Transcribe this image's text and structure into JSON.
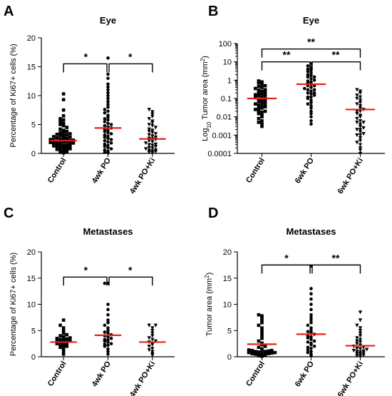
{
  "chart_data": [
    {
      "panel": "A",
      "type": "scatter",
      "title": "Eye",
      "ylabel": "Percentage of Ki67+ cells (%)",
      "ylim": [
        0,
        20
      ],
      "yticks": [
        "0",
        "5",
        "10",
        "15",
        "20"
      ],
      "categories": [
        "Control",
        "4wk PO",
        "4wk PO+Ki"
      ],
      "markers": [
        "square",
        "circle",
        "triangle-down"
      ],
      "means": [
        2.2,
        4.4,
        2.5
      ],
      "series": [
        {
          "values": [
            0.1,
            0.2,
            0.3,
            0.4,
            0.5,
            0.6,
            0.7,
            0.8,
            0.9,
            1.0,
            1.1,
            1.2,
            1.2,
            1.3,
            1.4,
            1.5,
            1.5,
            1.6,
            1.7,
            1.8,
            1.8,
            1.9,
            2.0,
            2.0,
            2.1,
            2.1,
            2.2,
            2.3,
            2.3,
            2.4,
            2.5,
            2.5,
            2.6,
            2.7,
            2.8,
            2.9,
            3.0,
            3.1,
            3.2,
            3.3,
            3.4,
            3.5,
            3.6,
            3.8,
            4.0,
            4.2,
            4.5,
            4.8,
            5.0,
            5.2,
            5.5,
            5.8,
            6.0,
            6.5,
            7.5,
            9.3,
            10.3
          ]
        },
        {
          "values": [
            0.1,
            0.2,
            0.4,
            0.6,
            0.8,
            1.0,
            1.2,
            1.4,
            1.6,
            1.8,
            2.0,
            2.2,
            2.4,
            2.6,
            2.8,
            3.0,
            3.2,
            3.4,
            3.6,
            3.8,
            4.0,
            4.2,
            4.4,
            4.6,
            4.8,
            5.0,
            5.2,
            5.5,
            5.8,
            6.0,
            6.3,
            6.6,
            7.0,
            7.3,
            7.6,
            8.0,
            8.5,
            9.0,
            9.5,
            10.0,
            10.5,
            11.0,
            11.5,
            12.0,
            13.0,
            13.7,
            16.5
          ]
        },
        {
          "values": [
            0.1,
            0.2,
            0.3,
            0.4,
            0.5,
            0.6,
            0.8,
            0.9,
            1.0,
            1.2,
            1.4,
            1.5,
            1.6,
            1.8,
            2.0,
            2.2,
            2.4,
            2.5,
            2.6,
            2.8,
            3.0,
            3.2,
            3.4,
            3.6,
            3.8,
            4.0,
            4.2,
            4.5,
            4.8,
            5.0,
            5.3,
            5.6,
            6.0,
            6.4,
            6.8,
            7.2,
            7.6
          ]
        }
      ],
      "significance": [
        {
          "from": 0,
          "to": 1,
          "label": "*",
          "y": 15.5
        },
        {
          "from": 1,
          "to": 2,
          "label": "*",
          "y": 15.5
        }
      ]
    },
    {
      "panel": "B",
      "type": "scatter",
      "title": "Eye",
      "ylabel": "Log10 Tumor area (mm2)",
      "ylabel_parts": {
        "pre": "Log",
        "sub": "10",
        "mid": " Tumor area (mm",
        "sup": "2",
        "post": ")"
      },
      "log_scale": true,
      "ylim": [
        0.0001,
        100
      ],
      "yticks": [
        "0.0001",
        "0.001",
        "0.01",
        "0.1",
        "1",
        "10",
        "100"
      ],
      "categories": [
        "Control",
        "6wk PO",
        "6wk PO+Ki"
      ],
      "markers": [
        "square",
        "circle",
        "triangle-down"
      ],
      "means": [
        0.1,
        0.6,
        0.025
      ],
      "series": [
        {
          "values": [
            0.003,
            0.004,
            0.005,
            0.006,
            0.008,
            0.01,
            0.012,
            0.015,
            0.018,
            0.02,
            0.025,
            0.03,
            0.035,
            0.04,
            0.045,
            0.05,
            0.06,
            0.07,
            0.08,
            0.09,
            0.1,
            0.11,
            0.12,
            0.14,
            0.16,
            0.18,
            0.2,
            0.22,
            0.25,
            0.28,
            0.3,
            0.35,
            0.4,
            0.45,
            0.5,
            0.6,
            0.7,
            0.8,
            0.9,
            0.05,
            0.03,
            0.02,
            0.07,
            0.15
          ]
        },
        {
          "values": [
            0.004,
            0.006,
            0.01,
            0.015,
            0.02,
            0.03,
            0.04,
            0.05,
            0.06,
            0.08,
            0.1,
            0.12,
            0.15,
            0.18,
            0.2,
            0.25,
            0.3,
            0.35,
            0.4,
            0.5,
            0.6,
            0.7,
            0.8,
            1.0,
            1.2,
            1.5,
            1.8,
            2.0,
            2.5,
            3.0,
            3.5,
            4.0,
            5.0,
            6.0,
            8.0,
            0.3,
            0.5,
            0.9,
            1.5,
            0.2,
            0.12
          ]
        },
        {
          "values": [
            0.0001,
            0.00015,
            0.0002,
            0.0003,
            0.0004,
            0.0005,
            0.0007,
            0.001,
            0.0012,
            0.0015,
            0.002,
            0.0025,
            0.003,
            0.004,
            0.005,
            0.006,
            0.008,
            0.01,
            0.012,
            0.015,
            0.02,
            0.025,
            0.03,
            0.04,
            0.05,
            0.06,
            0.08,
            0.1,
            0.12,
            0.15,
            0.2,
            0.25,
            0.3,
            0.001,
            0.002,
            0.005,
            0.02
          ]
        }
      ],
      "significance": [
        {
          "from": 0,
          "to": 2,
          "label": "**",
          "y": 50
        },
        {
          "from": 0,
          "to": 1,
          "label": "**",
          "y": 10
        },
        {
          "from": 1,
          "to": 2,
          "label": "**",
          "y": 10
        }
      ]
    },
    {
      "panel": "C",
      "type": "scatter",
      "title": "Metastases",
      "ylabel": "Percentage of Ki67+ cells (%)",
      "ylim": [
        0,
        20
      ],
      "yticks": [
        "0",
        "5",
        "10",
        "15",
        "20"
      ],
      "categories": [
        "Control",
        "4wk PO",
        "4wk PO+Ki"
      ],
      "markers": [
        "square",
        "circle",
        "triangle-down"
      ],
      "means": [
        2.8,
        4.1,
        2.8
      ],
      "series": [
        {
          "values": [
            0.5,
            1.0,
            1.5,
            1.8,
            2.0,
            2.2,
            2.4,
            2.5,
            2.6,
            2.8,
            3.0,
            3.0,
            3.2,
            3.4,
            3.5,
            3.6,
            3.8,
            4.0,
            4.2,
            4.5,
            5.0,
            5.5,
            6.0,
            7.0,
            2.1,
            2.7,
            3.3
          ]
        },
        {
          "values": [
            0.5,
            1.0,
            1.5,
            2.0,
            2.2,
            2.5,
            2.8,
            3.0,
            3.2,
            3.5,
            3.8,
            4.0,
            4.2,
            4.5,
            5.0,
            5.5,
            6.0,
            6.5,
            7.0,
            8.0,
            9.0,
            10.0,
            14.0,
            14.0,
            3.3,
            4.7,
            2.4
          ]
        },
        {
          "values": [
            0.3,
            0.6,
            1.0,
            1.3,
            1.6,
            2.0,
            2.3,
            2.6,
            3.0,
            3.3,
            3.6,
            4.0,
            4.5,
            5.0,
            5.5,
            6.0,
            6.0,
            2.8
          ]
        }
      ],
      "significance": [
        {
          "from": 0,
          "to": 1,
          "label": "*",
          "y": 15.2
        },
        {
          "from": 1,
          "to": 2,
          "label": "*",
          "y": 15.2
        }
      ]
    },
    {
      "panel": "D",
      "type": "scatter",
      "title": "Metastases",
      "ylabel": "Tumor area (mm2)",
      "ylabel_parts": {
        "pre": "Tumor area (mm",
        "sup": "2",
        "post": ")"
      },
      "ylim": [
        0,
        20
      ],
      "yticks": [
        "0",
        "5",
        "10",
        "15",
        "20"
      ],
      "categories": [
        "Control",
        "6wk PO",
        "6wk PO+Ki"
      ],
      "markers": [
        "square",
        "circle",
        "triangle-down"
      ],
      "means": [
        2.4,
        4.3,
        2.1
      ],
      "series": [
        {
          "values": [
            0.1,
            0.2,
            0.3,
            0.4,
            0.5,
            0.5,
            0.6,
            0.7,
            0.8,
            0.8,
            0.9,
            1.0,
            1.0,
            1.1,
            1.2,
            1.3,
            1.5,
            1.8,
            2.0,
            2.3,
            2.6,
            3.0,
            3.5,
            4.0,
            4.5,
            5.0,
            5.5,
            6.0,
            6.5,
            7.0,
            7.5,
            7.8,
            8.0,
            0.6,
            0.9,
            1.2,
            0.4
          ]
        },
        {
          "values": [
            0.2,
            0.5,
            0.8,
            1.0,
            1.3,
            1.6,
            2.0,
            2.3,
            2.6,
            3.0,
            3.3,
            3.6,
            4.0,
            4.3,
            4.6,
            5.0,
            5.5,
            6.0,
            6.5,
            7.0,
            7.5,
            8.0,
            9.0,
            10.0,
            11.0,
            12.0,
            13.0,
            17.3,
            1.8,
            2.8,
            3.8,
            4.8
          ]
        },
        {
          "values": [
            0.1,
            0.2,
            0.3,
            0.5,
            0.7,
            0.9,
            1.0,
            1.2,
            1.4,
            1.6,
            1.8,
            2.0,
            2.2,
            2.5,
            2.8,
            3.0,
            3.3,
            3.6,
            4.0,
            4.5,
            5.0,
            5.5,
            6.0,
            7.0,
            8.5,
            1.1,
            1.5,
            0.6
          ]
        }
      ],
      "significance": [
        {
          "from": 0,
          "to": 1,
          "label": "*",
          "y": 17.5
        },
        {
          "from": 1,
          "to": 2,
          "label": "**",
          "y": 17.5
        }
      ]
    }
  ]
}
